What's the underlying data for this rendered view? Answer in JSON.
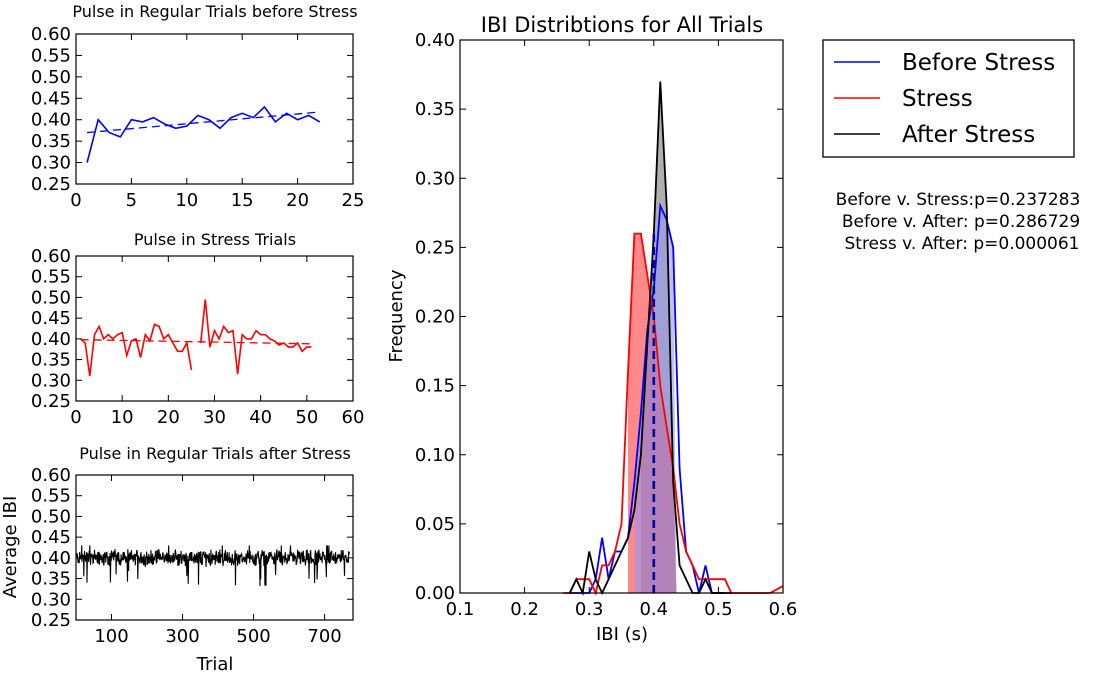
{
  "chart_data": [
    {
      "type": "line",
      "title": "Pulse in Regular Trials before Stress",
      "xlabel": "",
      "ylabel": "",
      "xlim": [
        0,
        25
      ],
      "ylim": [
        0.25,
        0.6
      ],
      "xticks": [
        0,
        5,
        10,
        15,
        20,
        25
      ],
      "yticks": [
        0.25,
        0.3,
        0.35,
        0.4,
        0.45,
        0.5,
        0.55,
        0.6
      ],
      "color": "#0000ff",
      "x": [
        1,
        2,
        3,
        4,
        5,
        6,
        7,
        8,
        9,
        10,
        11,
        12,
        13,
        14,
        15,
        16,
        17,
        18,
        19,
        20,
        21,
        22
      ],
      "values": [
        0.3,
        0.4,
        0.37,
        0.36,
        0.4,
        0.395,
        0.405,
        0.39,
        0.38,
        0.385,
        0.41,
        0.4,
        0.38,
        0.405,
        0.415,
        0.405,
        0.43,
        0.395,
        0.415,
        0.4,
        0.41,
        0.395
      ],
      "trend": {
        "x": [
          1,
          22
        ],
        "y": [
          0.37,
          0.418
        ]
      }
    },
    {
      "type": "line",
      "title": "Pulse in Stress Trials",
      "xlabel": "",
      "ylabel": "",
      "xlim": [
        0,
        60
      ],
      "ylim": [
        0.25,
        0.6
      ],
      "xticks": [
        0,
        10,
        20,
        30,
        40,
        50,
        60
      ],
      "yticks": [
        0.25,
        0.3,
        0.35,
        0.4,
        0.45,
        0.5,
        0.55,
        0.6
      ],
      "color": "#ff0000",
      "segments": [
        {
          "x": [
            1,
            2,
            3,
            4,
            5,
            6,
            7,
            8,
            9,
            10,
            11,
            12,
            13,
            14,
            15,
            16,
            17,
            18,
            19,
            20,
            21,
            22,
            23,
            24,
            25
          ],
          "values": [
            0.4,
            0.39,
            0.31,
            0.41,
            0.43,
            0.4,
            0.41,
            0.4,
            0.41,
            0.415,
            0.36,
            0.395,
            0.4,
            0.355,
            0.41,
            0.395,
            0.435,
            0.43,
            0.4,
            0.41,
            0.39,
            0.37,
            0.37,
            0.39,
            0.325
          ]
        },
        {
          "x": [
            27,
            28,
            29,
            30,
            31,
            32,
            33,
            34,
            35,
            36,
            37,
            38,
            39,
            40,
            41,
            42,
            43,
            44,
            45,
            46,
            47,
            48,
            49,
            50,
            51
          ],
          "values": [
            0.39,
            0.495,
            0.38,
            0.42,
            0.4,
            0.43,
            0.415,
            0.42,
            0.315,
            0.41,
            0.4,
            0.4,
            0.42,
            0.41,
            0.41,
            0.4,
            0.395,
            0.385,
            0.39,
            0.38,
            0.38,
            0.39,
            0.37,
            0.38,
            0.38
          ]
        }
      ],
      "trend": {
        "x": [
          1,
          51
        ],
        "y": [
          0.398,
          0.388
        ]
      }
    },
    {
      "type": "line",
      "title": "Pulse in Regular Trials after Stress",
      "xlabel": "Trial",
      "ylabel": "Average IBI",
      "xlim": [
        0,
        780
      ],
      "ylim": [
        0.25,
        0.6
      ],
      "xticks": [
        100,
        300,
        500,
        700
      ],
      "yticks": [
        0.25,
        0.3,
        0.35,
        0.4,
        0.45,
        0.5,
        0.55,
        0.6
      ],
      "color": "#000000",
      "n_points": 770,
      "mean": 0.4,
      "spread": 0.015,
      "min_dip": 0.33
    },
    {
      "type": "area",
      "title": "IBI Distribtions for All Trials",
      "xlabel": "IBI (s)",
      "ylabel": "Frequency",
      "xlim": [
        0.1,
        0.6
      ],
      "ylim": [
        0.0,
        0.4
      ],
      "xticks": [
        0.1,
        0.2,
        0.3,
        0.4,
        0.5,
        0.6
      ],
      "yticks": [
        0.0,
        0.05,
        0.1,
        0.15,
        0.2,
        0.25,
        0.3,
        0.35,
        0.4
      ],
      "series": [
        {
          "name": "Before Stress",
          "color": "#0000ff",
          "x": [
            0.27,
            0.28,
            0.29,
            0.3,
            0.31,
            0.32,
            0.33,
            0.34,
            0.35,
            0.36,
            0.37,
            0.38,
            0.39,
            0.4,
            0.41,
            0.42,
            0.43,
            0.44,
            0.45,
            0.46,
            0.47,
            0.48,
            0.49,
            0.5,
            0.51
          ],
          "values": [
            0.0,
            0.0,
            0.0,
            0.0,
            0.01,
            0.04,
            0.01,
            0.03,
            0.03,
            0.04,
            0.08,
            0.13,
            0.19,
            0.22,
            0.28,
            0.27,
            0.25,
            0.09,
            0.03,
            0.02,
            0.0,
            0.02,
            0.0,
            0.0,
            0.0
          ],
          "shade": [
            0.37,
            0.435
          ],
          "mean": 0.4
        },
        {
          "name": "Stress",
          "color": "#ff0000",
          "x": [
            0.26,
            0.27,
            0.28,
            0.29,
            0.3,
            0.31,
            0.32,
            0.33,
            0.34,
            0.35,
            0.36,
            0.37,
            0.38,
            0.39,
            0.4,
            0.41,
            0.42,
            0.43,
            0.44,
            0.45,
            0.46,
            0.47,
            0.48,
            0.49,
            0.5,
            0.51,
            0.52,
            0.55,
            0.58,
            0.6
          ],
          "values": [
            0.0,
            0.0,
            0.01,
            0.01,
            0.01,
            0.0,
            0.02,
            0.02,
            0.03,
            0.05,
            0.16,
            0.26,
            0.26,
            0.23,
            0.2,
            0.15,
            0.12,
            0.09,
            0.05,
            0.03,
            0.02,
            0.01,
            0.01,
            0.01,
            0.01,
            0.01,
            0.0,
            0.0,
            0.0,
            0.005
          ],
          "shade": [
            0.36,
            0.435
          ],
          "mean": 0.4
        },
        {
          "name": "After Stress",
          "color": "#000000",
          "x": [
            0.27,
            0.28,
            0.29,
            0.3,
            0.31,
            0.32,
            0.33,
            0.34,
            0.35,
            0.36,
            0.37,
            0.38,
            0.39,
            0.4,
            0.41,
            0.42,
            0.43,
            0.44,
            0.45,
            0.46,
            0.47,
            0.48,
            0.49,
            0.5,
            0.51,
            0.52
          ],
          "values": [
            0.0,
            0.01,
            0.0,
            0.03,
            0.01,
            0.0,
            0.01,
            0.02,
            0.03,
            0.04,
            0.06,
            0.1,
            0.18,
            0.26,
            0.37,
            0.28,
            0.08,
            0.02,
            0.01,
            0.0,
            0.0,
            0.01,
            0.0,
            0.0,
            0.0,
            0.0
          ],
          "shade": [
            0.38,
            0.435
          ],
          "mean": 0.405
        }
      ],
      "legend_position": "upper-right, outside",
      "stats": [
        "Before v. Stress:p=0.237283",
        "Before v. After: p=0.286729",
        "Stress v. After: p=0.000061"
      ]
    }
  ]
}
